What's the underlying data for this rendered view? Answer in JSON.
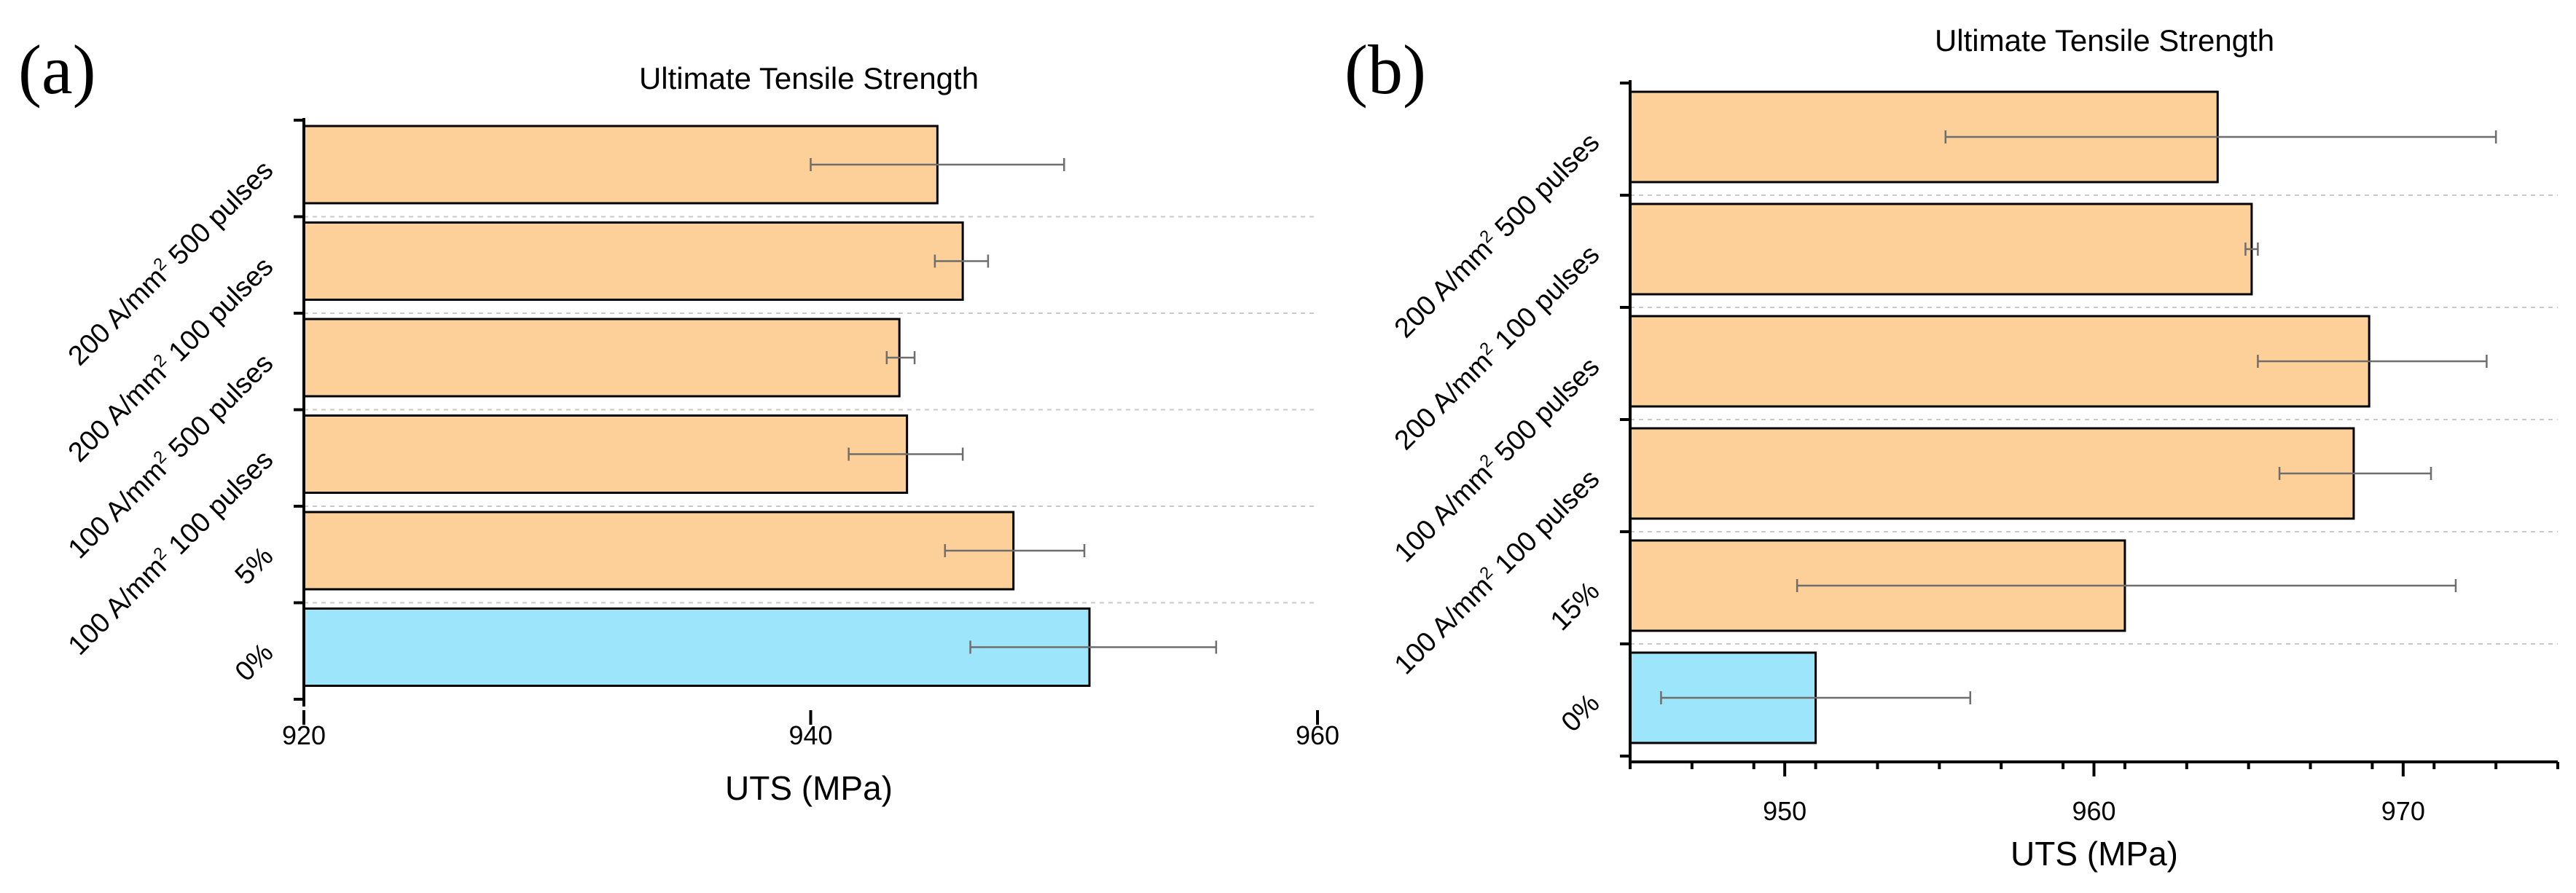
{
  "panels": [
    {
      "letter": "(a)",
      "chart_data": {
        "type": "bar",
        "orientation": "horizontal",
        "title": "Ultimate Tensile Strength",
        "xlabel": "UTS (MPa)",
        "ylabel": "",
        "xlim": [
          920,
          960
        ],
        "xticks": [
          920,
          940,
          960
        ],
        "categories": [
          {
            "main": "200 A/mm",
            "sup": "2",
            "rest": " 500 pulses"
          },
          {
            "main": "200 A/mm",
            "sup": "2",
            "rest": " 100 pulses"
          },
          {
            "main": "100 A/mm",
            "sup": "2",
            "rest": " 500 pulses"
          },
          {
            "main": "100 A/mm",
            "sup": "2",
            "rest": " 100 pulses"
          },
          {
            "main": "5%",
            "sup": "",
            "rest": ""
          },
          {
            "main": "0%",
            "sup": "",
            "rest": ""
          }
        ],
        "values": [
          945.0,
          946.0,
          943.5,
          943.8,
          948.0,
          951.0
        ],
        "error_low": [
          940.0,
          944.9,
          943.0,
          941.5,
          945.3,
          946.3
        ],
        "error_high": [
          950.0,
          947.0,
          944.1,
          946.0,
          950.8,
          956.0
        ],
        "colors": [
          "#fdd09a",
          "#fdd09a",
          "#fdd09a",
          "#fdd09a",
          "#fdd09a",
          "#9de5fa"
        ]
      }
    },
    {
      "letter": "(b)",
      "chart_data": {
        "type": "bar",
        "orientation": "horizontal",
        "title": "Ultimate Tensile Strength",
        "xlabel": "UTS (MPa)",
        "ylabel": "",
        "xlim": [
          945,
          975
        ],
        "xticks": [
          950,
          960,
          970
        ],
        "categories": [
          {
            "main": "200 A/mm",
            "sup": "2",
            "rest": " 500 pulses"
          },
          {
            "main": "200 A/mm",
            "sup": "2",
            "rest": " 100 pulses"
          },
          {
            "main": "100 A/mm",
            "sup": "2",
            "rest": " 500 pulses"
          },
          {
            "main": "100 A/mm",
            "sup": "2",
            "rest": " 100 pulses"
          },
          {
            "main": "15%",
            "sup": "",
            "rest": ""
          },
          {
            "main": "0%",
            "sup": "",
            "rest": ""
          }
        ],
        "values": [
          964.0,
          965.1,
          968.9,
          968.4,
          961.0,
          951.0
        ],
        "error_low": [
          955.2,
          964.9,
          965.3,
          966.0,
          950.4,
          946.0
        ],
        "error_high": [
          973.0,
          965.3,
          972.7,
          970.9,
          971.7,
          956.0
        ],
        "colors": [
          "#fdd09a",
          "#fdd09a",
          "#fdd09a",
          "#fdd09a",
          "#fdd09a",
          "#9de5fa"
        ]
      }
    }
  ]
}
